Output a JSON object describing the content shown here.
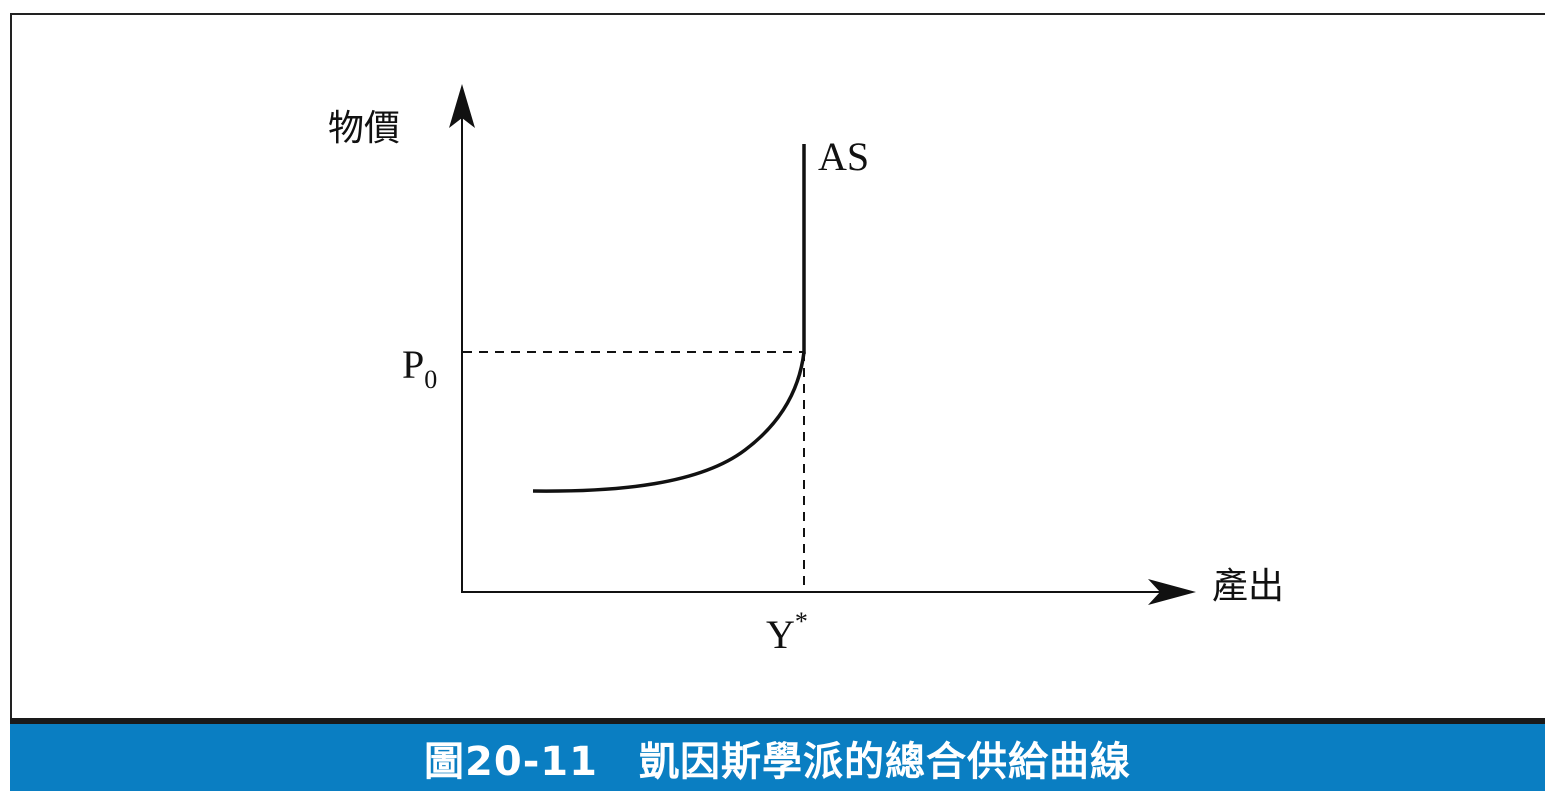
{
  "diagram": {
    "y_axis_label": "物價",
    "x_axis_label": "產出",
    "curve_label": "AS",
    "price_label_main": "P",
    "price_label_sub": "0",
    "output_label_main": "Y",
    "output_label_sup": "*"
  },
  "caption": {
    "text": "圖20-11　凱因斯學派的總合供給曲線"
  },
  "colors": {
    "caption_bg": "#0a7ec2",
    "caption_text": "#ffffff",
    "caption_border": "#1a1a1a",
    "line": "#111111"
  }
}
